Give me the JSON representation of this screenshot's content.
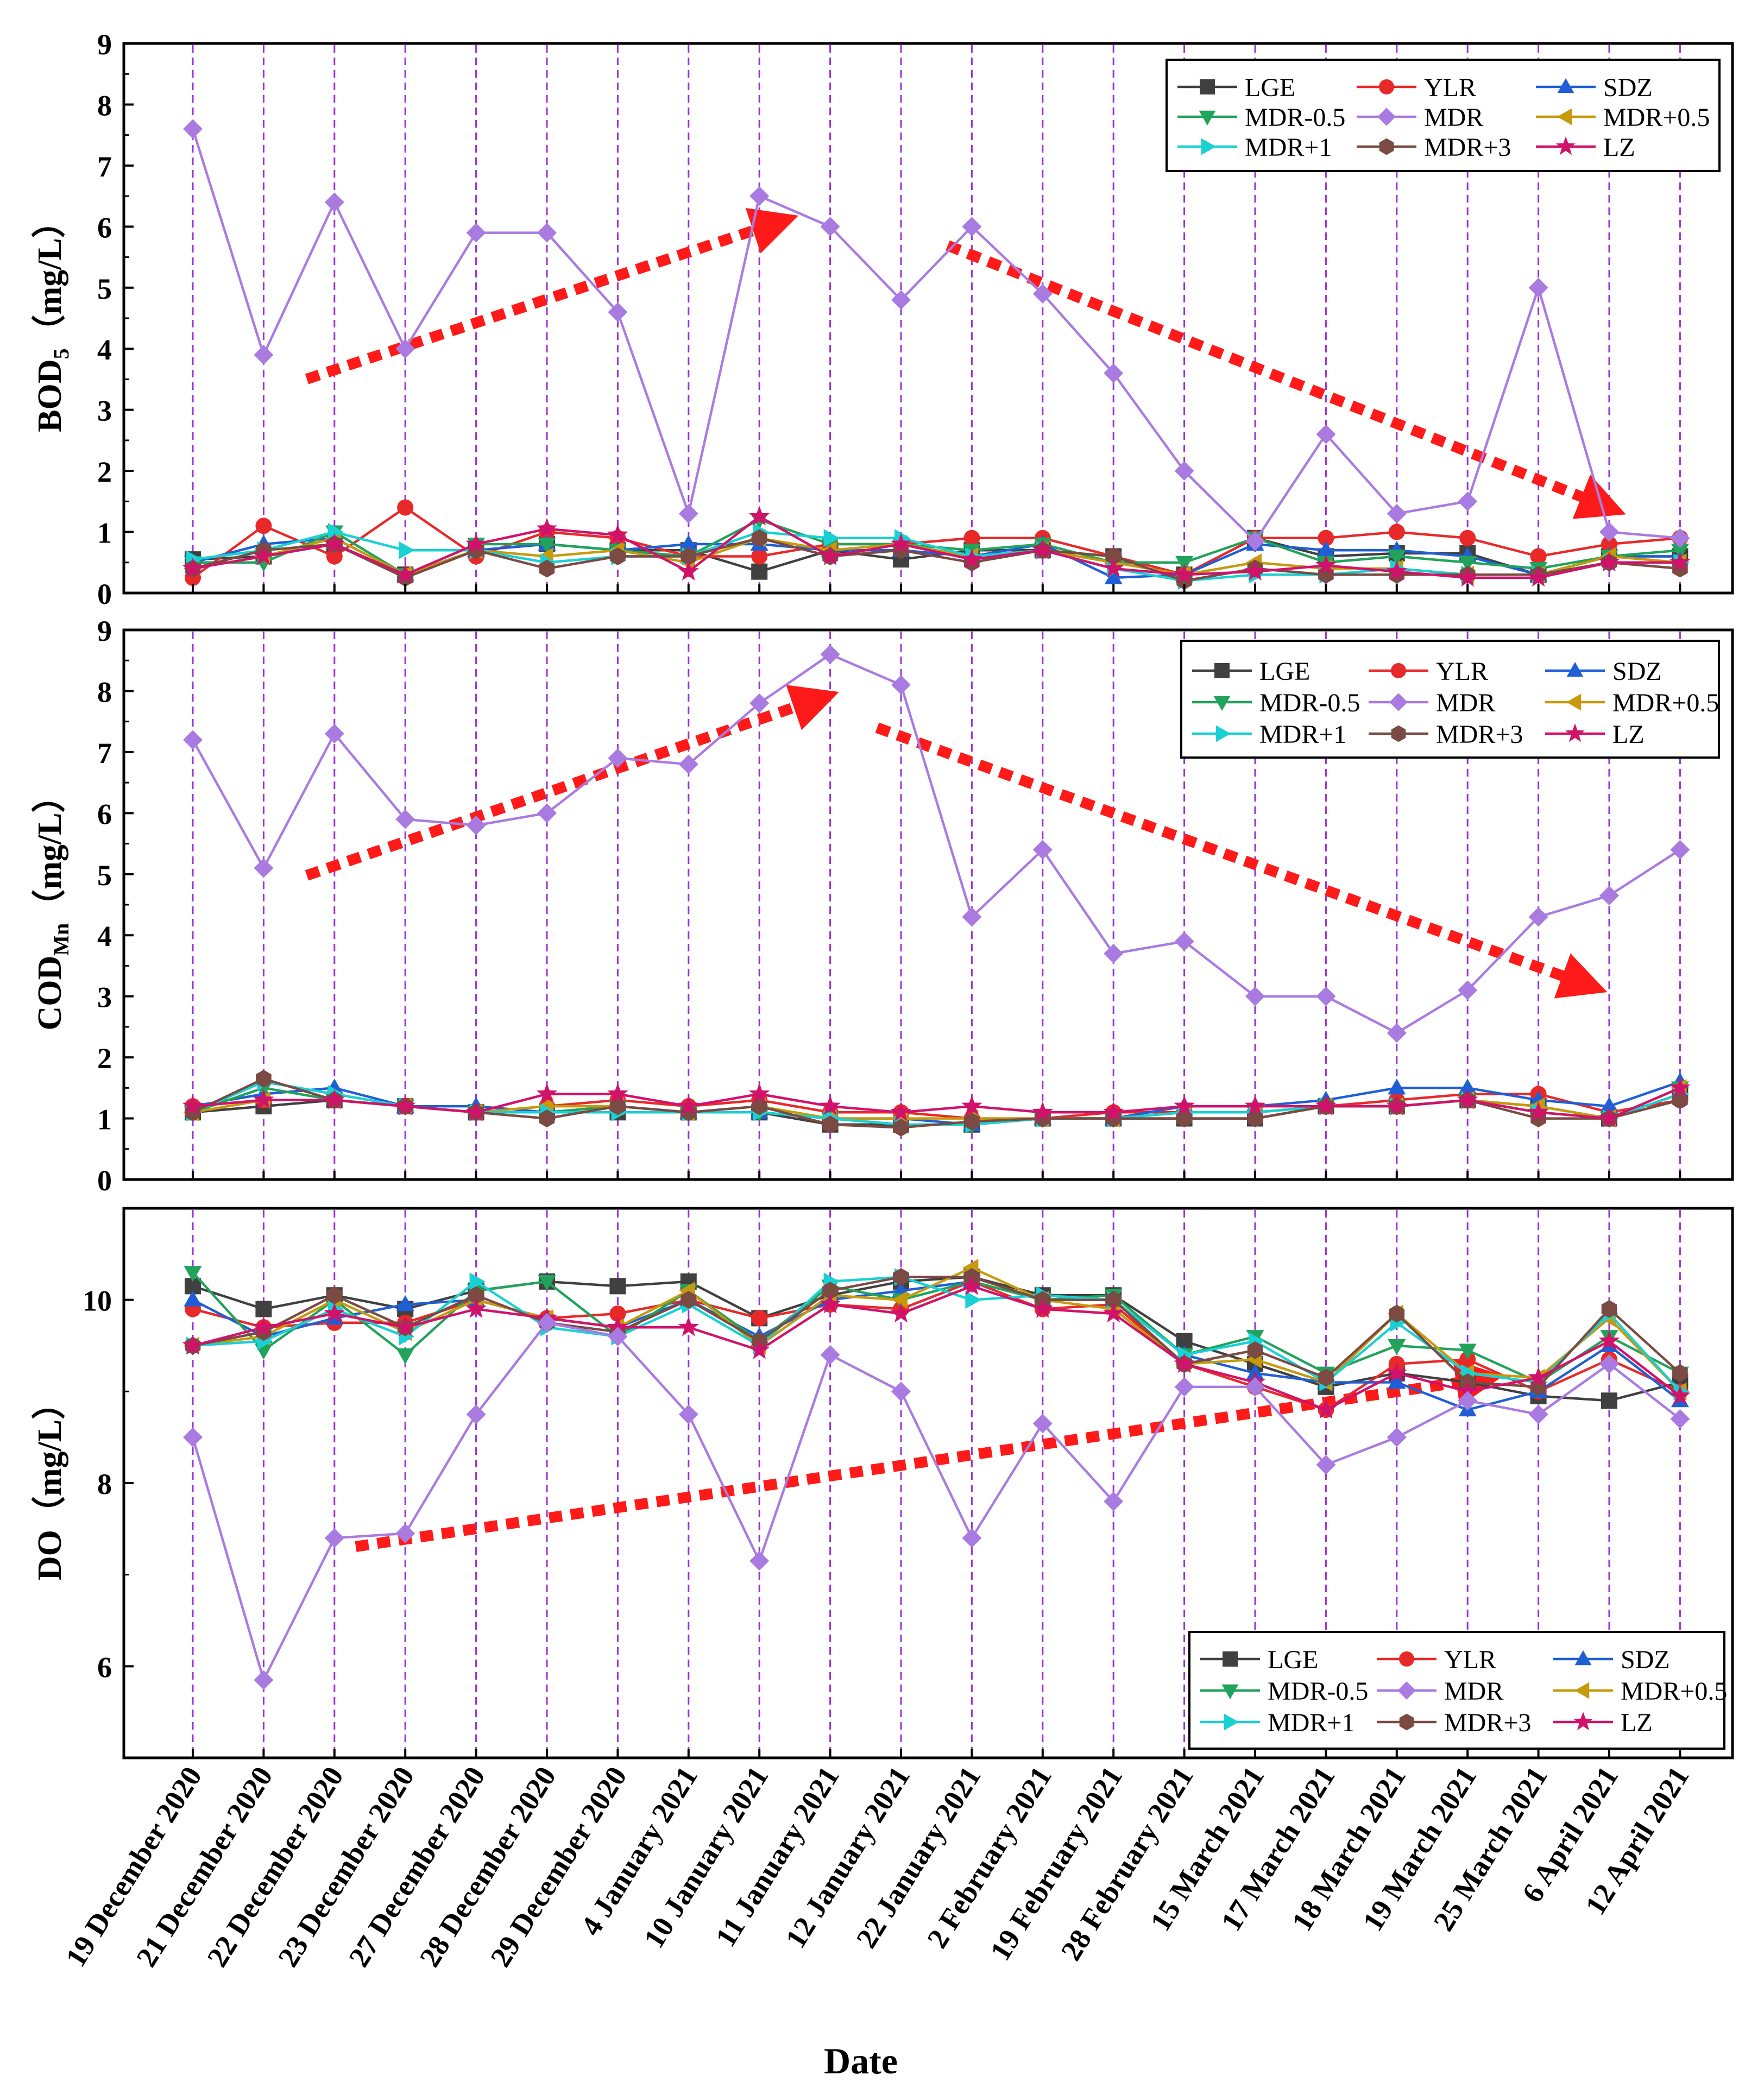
{
  "figure": {
    "xlabel": "Date",
    "dates": [
      "19 December 2020",
      "21 December 2020",
      "22 December 2020",
      "23 December 2020",
      "27 December 2020",
      "28 December 2020",
      "29 December 2020",
      "4 January 2021",
      "10 January 2021",
      "11 January 2021",
      "12 January 2021",
      "22 January 2021",
      "2 February 2021",
      "19 February 2021",
      "28 February 2021",
      "15 March 2021",
      "17 March 2021",
      "18 March 2021",
      "19 March 2021",
      "25 March 2021",
      "6 April 2021",
      "12 April 2021"
    ],
    "series_styles": [
      {
        "name": "LGE",
        "color": "#404040",
        "marker": "square"
      },
      {
        "name": "YLR",
        "color": "#e8292a",
        "marker": "circle"
      },
      {
        "name": "SDZ",
        "color": "#1f5fd6",
        "marker": "triangle-up"
      },
      {
        "name": "MDR-0.5",
        "color": "#21a35b",
        "marker": "triangle-down"
      },
      {
        "name": "MDR",
        "color": "#a97be0",
        "marker": "diamond"
      },
      {
        "name": "MDR+0.5",
        "color": "#c69a0c",
        "marker": "triangle-left"
      },
      {
        "name": "MDR+1",
        "color": "#19d0d3",
        "marker": "triangle-right"
      },
      {
        "name": "MDR+3",
        "color": "#7a4a43",
        "marker": "hexagon"
      },
      {
        "name": "LZ",
        "color": "#d1126b",
        "marker": "star"
      }
    ],
    "colors": {
      "guide_lines": "#9b30d9",
      "trend_arrows": "#ff1a1a",
      "axes": "#000000"
    }
  },
  "chart_data": [
    {
      "type": "line",
      "ylabel_main": "BOD",
      "ylabel_sub": "5",
      "ylabel_unit": "（mg/L）",
      "ylim": [
        0,
        9
      ],
      "yticks": [
        0,
        1,
        2,
        3,
        4,
        5,
        6,
        7,
        8,
        9
      ],
      "series": [
        {
          "name": "LGE",
          "values": [
            0.55,
            0.6,
            0.8,
            0.3,
            0.7,
            0.8,
            0.7,
            0.7,
            0.35,
            0.7,
            0.55,
            0.7,
            0.7,
            0.6,
            0.3,
            0.9,
            0.6,
            0.65,
            0.65,
            0.3,
            0.6,
            0.6
          ]
        },
        {
          "name": "YLR",
          "values": [
            0.25,
            1.1,
            0.6,
            1.4,
            0.6,
            1.0,
            0.9,
            0.6,
            0.6,
            0.8,
            0.8,
            0.9,
            0.9,
            0.6,
            0.3,
            0.9,
            0.9,
            1.0,
            0.9,
            0.6,
            0.8,
            0.9
          ]
        },
        {
          "name": "SDZ",
          "values": [
            0.5,
            0.8,
            0.9,
            0.3,
            0.7,
            0.8,
            0.7,
            0.8,
            0.8,
            0.7,
            0.7,
            0.6,
            0.8,
            0.25,
            0.3,
            0.8,
            0.7,
            0.7,
            0.6,
            0.3,
            0.6,
            0.6
          ]
        },
        {
          "name": "MDR-0.5",
          "values": [
            0.5,
            0.5,
            1.0,
            0.3,
            0.8,
            0.8,
            0.7,
            0.6,
            1.2,
            0.8,
            0.8,
            0.7,
            0.8,
            0.5,
            0.5,
            0.9,
            0.5,
            0.6,
            0.5,
            0.4,
            0.6,
            0.7
          ]
        },
        {
          "name": "MDR",
          "values": [
            7.6,
            3.9,
            6.4,
            4.0,
            5.9,
            5.9,
            4.6,
            1.3,
            6.5,
            6.0,
            4.8,
            6.0,
            4.9,
            3.6,
            2.0,
            0.85,
            2.6,
            1.3,
            1.5,
            5.0,
            1.0,
            0.9
          ]
        },
        {
          "name": "MDR+0.5",
          "values": [
            0.4,
            0.6,
            0.9,
            0.3,
            0.7,
            0.6,
            0.7,
            0.5,
            0.9,
            0.7,
            0.8,
            0.6,
            0.7,
            0.5,
            0.3,
            0.5,
            0.4,
            0.4,
            0.3,
            0.3,
            0.6,
            0.5
          ]
        },
        {
          "name": "MDR+1",
          "values": [
            0.55,
            0.7,
            1.0,
            0.7,
            0.7,
            0.5,
            0.6,
            0.6,
            1.0,
            0.9,
            0.9,
            0.6,
            0.7,
            0.4,
            0.2,
            0.3,
            0.3,
            0.4,
            0.3,
            0.3,
            0.5,
            0.5
          ]
        },
        {
          "name": "MDR+3",
          "values": [
            0.4,
            0.7,
            0.8,
            0.25,
            0.7,
            0.4,
            0.6,
            0.6,
            0.9,
            0.6,
            0.7,
            0.5,
            0.7,
            0.6,
            0.2,
            0.4,
            0.3,
            0.3,
            0.3,
            0.3,
            0.5,
            0.4
          ]
        },
        {
          "name": "LZ",
          "values": [
            0.4,
            0.6,
            0.8,
            0.3,
            0.8,
            1.05,
            0.95,
            0.35,
            1.25,
            0.6,
            0.8,
            0.55,
            0.7,
            0.4,
            0.3,
            0.35,
            0.45,
            0.35,
            0.25,
            0.25,
            0.5,
            0.5
          ]
        }
      ],
      "legend_position": "top-right"
    },
    {
      "type": "line",
      "ylabel_main": "COD",
      "ylabel_sub": "Mn",
      "ylabel_unit": "（mg/L）",
      "ylim": [
        0,
        9
      ],
      "yticks": [
        0,
        1,
        2,
        3,
        4,
        5,
        6,
        7,
        8,
        9
      ],
      "series": [
        {
          "name": "LGE",
          "values": [
            1.1,
            1.2,
            1.3,
            1.2,
            1.1,
            1.1,
            1.1,
            1.1,
            1.1,
            0.9,
            0.9,
            0.9,
            1.0,
            1.0,
            1.0,
            1.0,
            1.2,
            1.2,
            1.3,
            1.2,
            1.0,
            1.4
          ]
        },
        {
          "name": "YLR",
          "values": [
            1.2,
            1.3,
            1.3,
            1.2,
            1.1,
            1.2,
            1.3,
            1.2,
            1.3,
            1.1,
            1.1,
            1.0,
            1.0,
            1.1,
            1.1,
            1.1,
            1.2,
            1.3,
            1.4,
            1.4,
            1.1,
            1.3
          ]
        },
        {
          "name": "SDZ",
          "values": [
            1.2,
            1.4,
            1.5,
            1.2,
            1.2,
            1.1,
            1.2,
            1.1,
            1.1,
            1.0,
            1.0,
            0.9,
            1.0,
            1.0,
            1.2,
            1.2,
            1.3,
            1.5,
            1.5,
            1.3,
            1.2,
            1.6
          ]
        },
        {
          "name": "MDR-0.5",
          "values": [
            1.1,
            1.5,
            1.3,
            1.2,
            1.1,
            1.1,
            1.2,
            1.1,
            1.1,
            1.0,
            0.9,
            0.9,
            1.0,
            1.0,
            1.1,
            1.1,
            1.2,
            1.2,
            1.3,
            1.1,
            1.0,
            1.5
          ]
        },
        {
          "name": "MDR",
          "values": [
            7.2,
            5.1,
            7.3,
            5.9,
            5.8,
            6.0,
            6.9,
            6.8,
            7.8,
            8.6,
            8.1,
            4.3,
            5.4,
            3.7,
            3.9,
            3.0,
            3.0,
            2.4,
            3.1,
            4.3,
            4.65,
            5.4
          ]
        },
        {
          "name": "MDR+0.5",
          "values": [
            1.1,
            1.3,
            1.3,
            1.2,
            1.1,
            1.2,
            1.2,
            1.1,
            1.2,
            1.0,
            1.0,
            1.0,
            1.0,
            1.0,
            1.1,
            1.1,
            1.2,
            1.2,
            1.3,
            1.2,
            1.0,
            1.5
          ]
        },
        {
          "name": "MDR+1",
          "values": [
            1.1,
            1.6,
            1.4,
            1.2,
            1.1,
            1.1,
            1.1,
            1.1,
            1.1,
            1.0,
            0.9,
            0.9,
            1.0,
            1.0,
            1.1,
            1.1,
            1.2,
            1.2,
            1.3,
            1.1,
            1.0,
            1.4
          ]
        },
        {
          "name": "MDR+3",
          "values": [
            1.1,
            1.65,
            1.3,
            1.2,
            1.1,
            1.0,
            1.2,
            1.1,
            1.2,
            0.9,
            0.85,
            0.95,
            1.0,
            1.0,
            1.0,
            1.0,
            1.2,
            1.2,
            1.3,
            1.0,
            1.0,
            1.3
          ]
        },
        {
          "name": "LZ",
          "values": [
            1.2,
            1.3,
            1.3,
            1.2,
            1.1,
            1.4,
            1.4,
            1.2,
            1.4,
            1.2,
            1.1,
            1.2,
            1.1,
            1.1,
            1.2,
            1.2,
            1.2,
            1.2,
            1.3,
            1.1,
            1.0,
            1.5
          ]
        }
      ],
      "legend_position": "top-right"
    },
    {
      "type": "line",
      "ylabel_main": "DO",
      "ylabel_sub": "",
      "ylabel_unit": "（mg/L）",
      "ylim": [
        5,
        11
      ],
      "yticks": [
        6,
        8,
        10
      ],
      "series": [
        {
          "name": "LGE",
          "values": [
            10.15,
            9.9,
            10.05,
            9.9,
            10.1,
            10.2,
            10.15,
            10.2,
            9.8,
            10.05,
            10.2,
            10.25,
            10.05,
            10.05,
            9.55,
            9.3,
            9.05,
            9.2,
            9.1,
            8.95,
            8.9,
            9.1
          ]
        },
        {
          "name": "YLR",
          "values": [
            9.9,
            9.7,
            9.75,
            9.75,
            10.0,
            9.8,
            9.85,
            10.0,
            9.8,
            9.95,
            9.9,
            10.2,
            9.9,
            9.95,
            9.3,
            9.05,
            8.8,
            9.3,
            9.35,
            9.0,
            9.35,
            9.0
          ]
        },
        {
          "name": "SDZ",
          "values": [
            10.0,
            9.6,
            9.8,
            9.95,
            10.0,
            9.8,
            9.7,
            10.0,
            9.6,
            10.0,
            10.1,
            10.2,
            10.0,
            10.0,
            9.4,
            9.2,
            9.1,
            9.1,
            8.8,
            9.0,
            9.5,
            8.9
          ]
        },
        {
          "name": "MDR-0.5",
          "values": [
            10.3,
            9.45,
            10.0,
            9.4,
            10.1,
            10.2,
            9.6,
            10.1,
            9.55,
            10.15,
            10.0,
            10.2,
            10.0,
            10.05,
            9.4,
            9.6,
            9.2,
            9.5,
            9.45,
            9.1,
            9.6,
            9.2
          ]
        },
        {
          "name": "MDR",
          "values": [
            8.5,
            5.85,
            7.4,
            7.45,
            8.75,
            9.75,
            9.6,
            8.75,
            7.15,
            9.4,
            9.0,
            7.4,
            8.65,
            7.8,
            9.05,
            9.05,
            8.2,
            8.5,
            8.9,
            8.75,
            9.3,
            8.7
          ]
        },
        {
          "name": "MDR+0.5",
          "values": [
            9.5,
            9.6,
            10.0,
            9.65,
            10.0,
            9.8,
            9.7,
            10.1,
            9.5,
            10.05,
            10.0,
            10.35,
            10.0,
            9.9,
            9.3,
            9.35,
            9.1,
            9.85,
            9.2,
            9.15,
            9.8,
            9.0
          ]
        },
        {
          "name": "MDR+1",
          "values": [
            9.5,
            9.55,
            9.9,
            9.6,
            10.2,
            9.7,
            9.6,
            9.95,
            9.5,
            10.2,
            10.25,
            10.0,
            10.05,
            10.0,
            9.4,
            9.55,
            9.1,
            9.75,
            9.2,
            9.1,
            9.85,
            9.0
          ]
        },
        {
          "name": "MDR+3",
          "values": [
            9.5,
            9.65,
            10.05,
            9.7,
            10.05,
            9.75,
            9.65,
            10.0,
            9.55,
            10.1,
            10.25,
            10.25,
            10.0,
            10.0,
            9.3,
            9.45,
            9.15,
            9.85,
            9.1,
            9.05,
            9.9,
            9.2
          ]
        },
        {
          "name": "LZ",
          "values": [
            9.5,
            9.7,
            9.85,
            9.7,
            9.9,
            9.8,
            9.7,
            9.7,
            9.45,
            9.95,
            9.85,
            10.15,
            9.9,
            9.85,
            9.3,
            9.1,
            8.8,
            9.2,
            9.0,
            9.15,
            9.55,
            8.95
          ]
        }
      ],
      "legend_position": "bottom-right"
    }
  ]
}
